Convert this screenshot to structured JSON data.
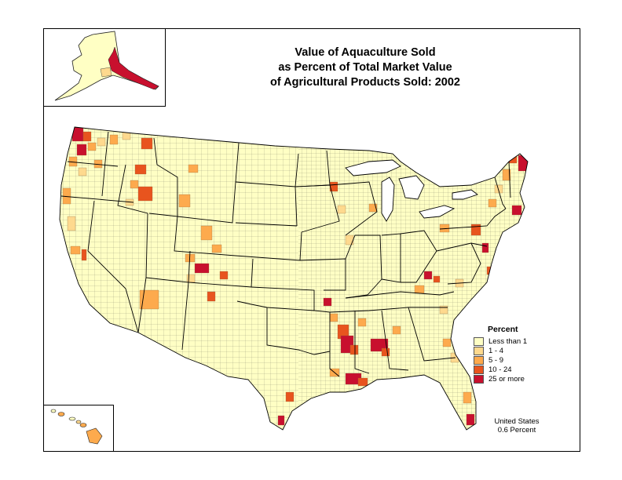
{
  "title_lines": [
    "Value of Aquaculture Sold",
    "as Percent of Total Market Value",
    "of Agricultural Products Sold:  2002"
  ],
  "legend": {
    "title": "Percent",
    "items": [
      {
        "label": "Less than 1",
        "color": "#ffffc4"
      },
      {
        "label": "1 - 4",
        "color": "#fed98e"
      },
      {
        "label": "5 - 9",
        "color": "#fdaa4d"
      },
      {
        "label": "10 - 24",
        "color": "#e8541e"
      },
      {
        "label": "25 or more",
        "color": "#c8102e"
      }
    ]
  },
  "note": {
    "line1": "United States",
    "line2": "0.6 Percent"
  },
  "colors": {
    "border": "#222222",
    "state_border": "#000000"
  }
}
